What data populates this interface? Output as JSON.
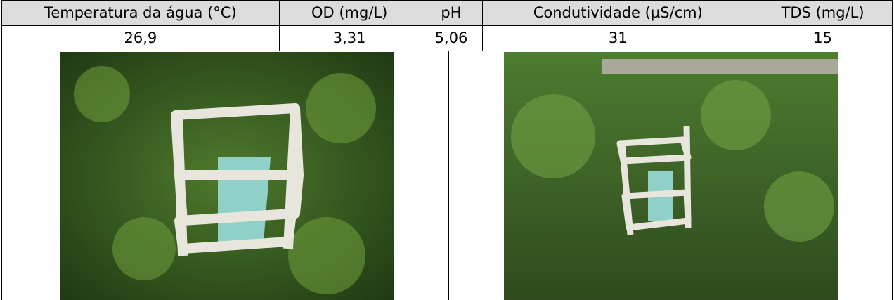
{
  "table": {
    "header": [
      "Temperatura da água (°C)",
      "OD (mg/L)",
      "pH",
      "Condutividade (µS/cm)",
      "TDS (mg/L)"
    ],
    "rows": [
      [
        "26,9",
        "3,31",
        "5,06",
        "31",
        "15"
      ]
    ]
  }
}
